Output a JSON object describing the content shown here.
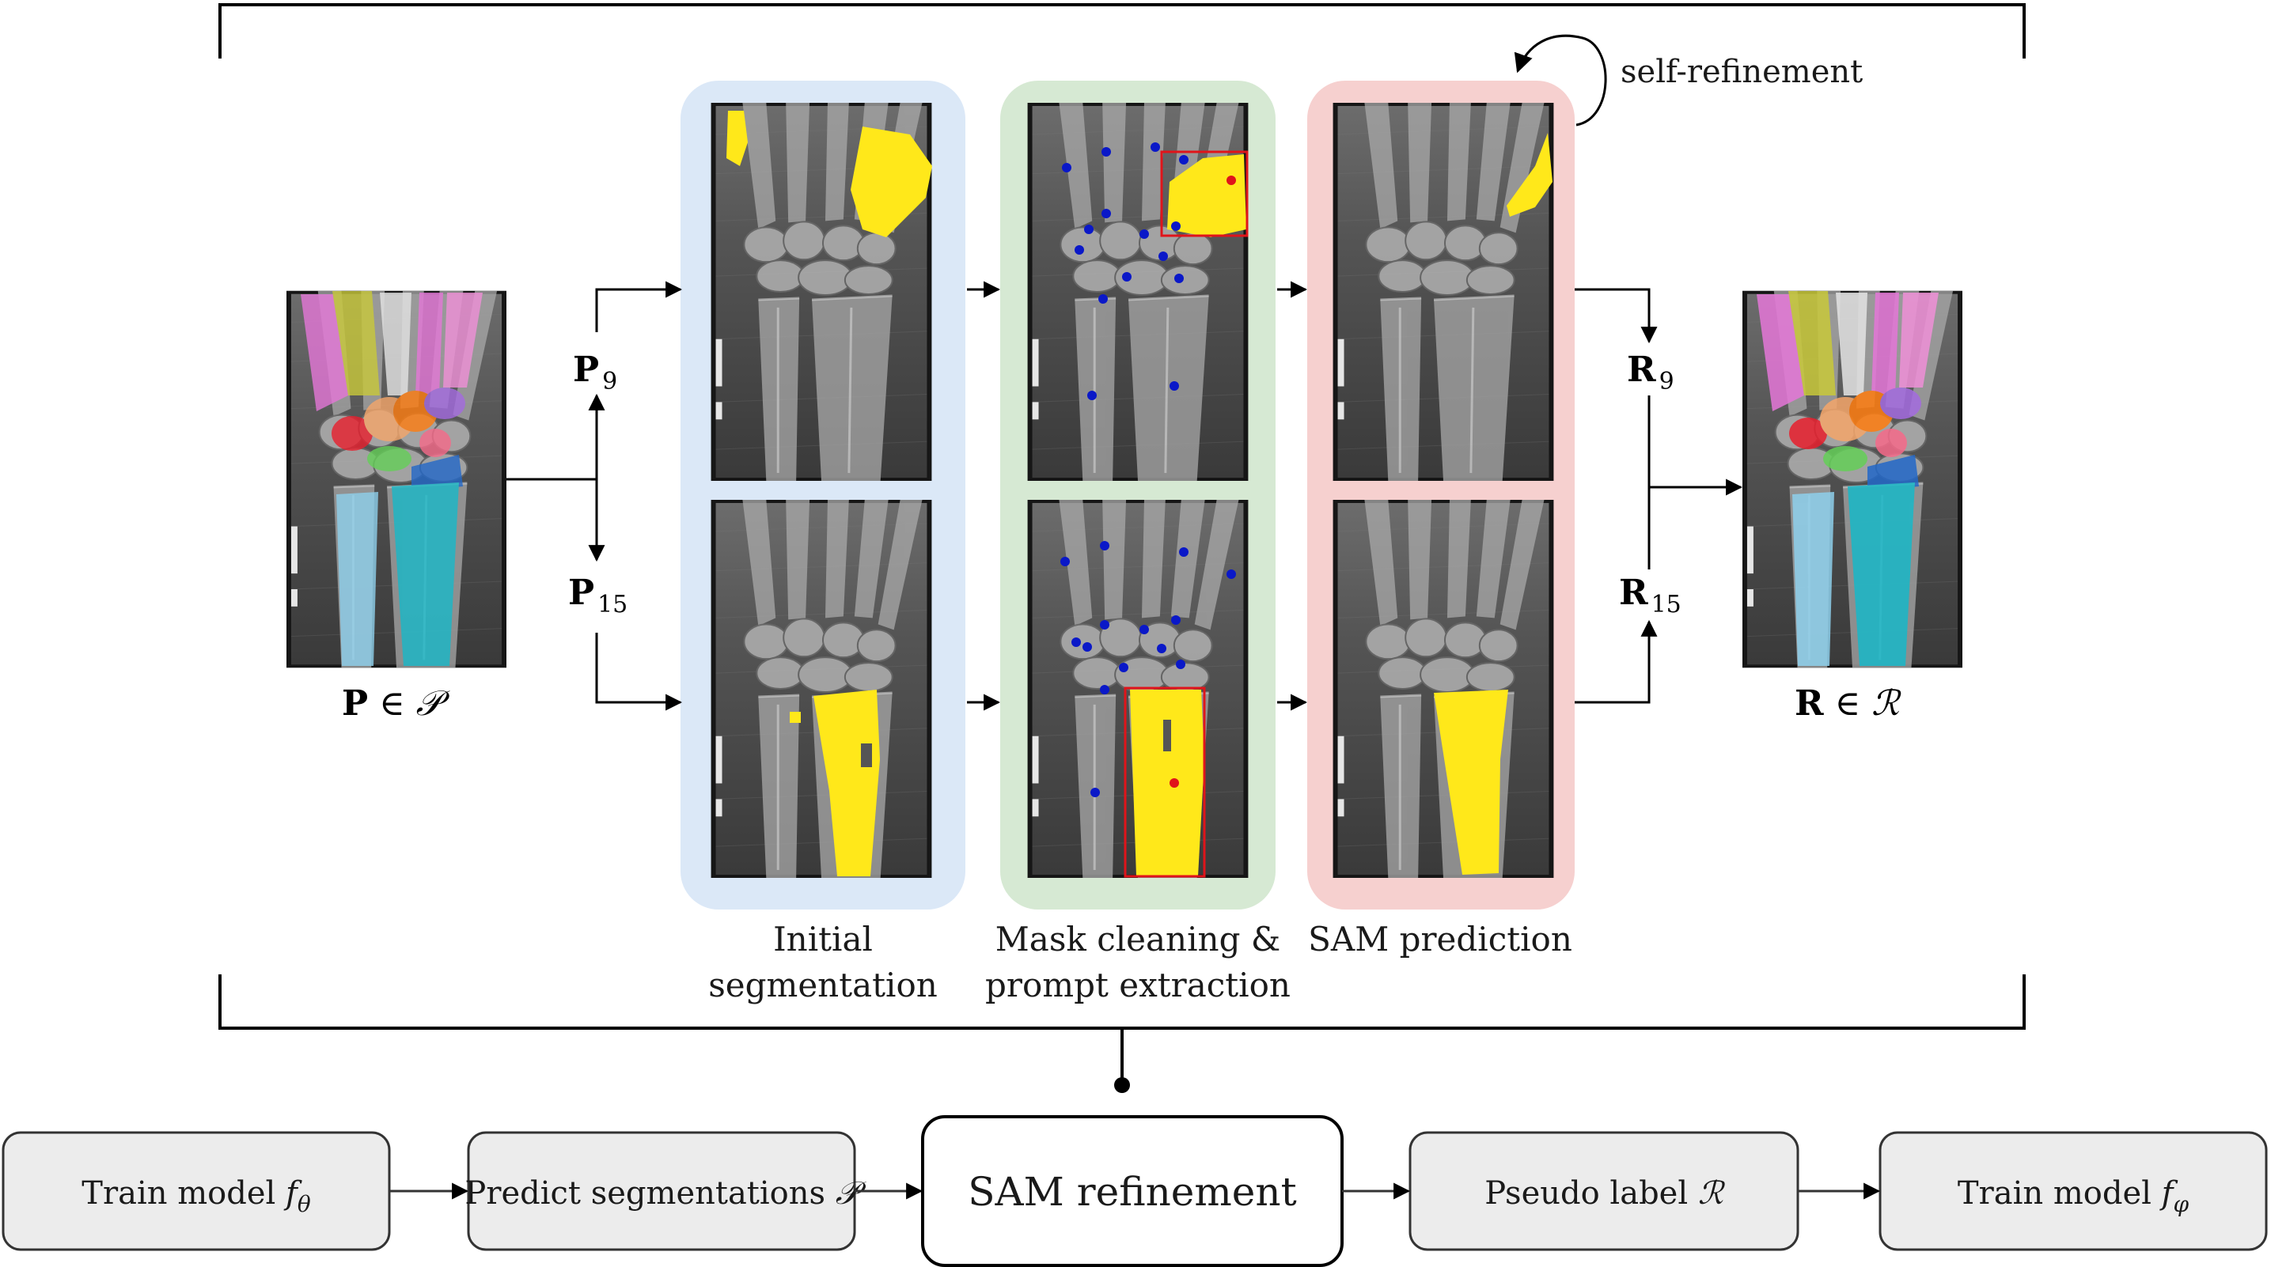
{
  "stages": {
    "initial": {
      "line1": "Initial",
      "line2": "segmentation"
    },
    "cleaning": {
      "line1": "Mask cleaning &",
      "line2": "prompt extraction"
    },
    "sam": {
      "line1": "SAM prediction"
    },
    "self_refinement": "self-refinement"
  },
  "inputs": {
    "P_label": "P",
    "P_set": "𝒫",
    "P9_base": "P",
    "P9_sub": "9",
    "P15_base": "P",
    "P15_sub": "15",
    "element_of": "∈"
  },
  "outputs": {
    "R_label": "R",
    "R_set": "ℛ",
    "R9_base": "R",
    "R9_sub": "9",
    "R15_base": "R",
    "R15_sub": "15",
    "element_of": "∈"
  },
  "pipeline": [
    {
      "label": "Train model ",
      "sym": "f",
      "sub": "θ"
    },
    {
      "label": "Predict segmentations ",
      "sym": "𝒫",
      "sub": ""
    },
    {
      "label": "SAM refinement",
      "sym": "",
      "sub": ""
    },
    {
      "label": "Pseudo label ",
      "sym": "ℛ",
      "sub": ""
    },
    {
      "label": "Train model ",
      "sym": "f",
      "sub": "φ"
    }
  ],
  "xray_marker": "R",
  "colors": {
    "initial_panel": "#dbe8f7",
    "cleaning_panel": "#d6e9d3",
    "sam_panel": "#f6d0cf",
    "mask_yellow": "#ffe81a",
    "prompt_blue": "#0a18c8",
    "prompt_red": "#e0141a",
    "box_fill": "#ececec"
  }
}
